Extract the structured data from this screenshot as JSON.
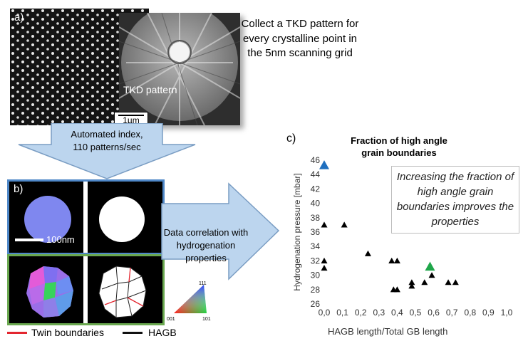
{
  "panel_a": {
    "label": "a)",
    "scale_bar": "1µm",
    "pattern_label": "TKD pattern",
    "collect_text": "Collect a TKD pattern for every crystalline point in the 5nm scanning grid"
  },
  "arrow_down": {
    "line1": "Automated index,",
    "line2": "110 patterns/sec"
  },
  "panel_b": {
    "label": "b)",
    "scale_bar": "100nm"
  },
  "arrow_right": {
    "line1": "Data correlation with",
    "line2": "hydrogenation",
    "line3": "properties"
  },
  "ipf_key": {
    "top": "111",
    "left": "001",
    "right": "101"
  },
  "legend": {
    "twin": "Twin boundaries",
    "hagb": "HAGB",
    "twin_color": "#e3262f",
    "hagb_color": "#111111"
  },
  "panel_c": {
    "label": "c)",
    "annotation": "Increasing the fraction of high angle grain boundaries improves the properties"
  },
  "chart_data": {
    "type": "scatter",
    "title": "Fraction of high angle grain boundaries",
    "xlabel": "HAGB length/Total GB length",
    "ylabel": "Hydrogenation pressure [mbar]",
    "xlim": [
      0,
      1.0
    ],
    "ylim": [
      26,
      46
    ],
    "x_ticks": [
      "0,0",
      "0,1",
      "0,2",
      "0,3",
      "0,4",
      "0,5",
      "0,6",
      "0,7",
      "0,8",
      "0,9",
      "1,0"
    ],
    "y_ticks": [
      "26",
      "28",
      "30",
      "32",
      "34",
      "36",
      "38",
      "40",
      "42",
      "44",
      "46"
    ],
    "grid": false,
    "points": [
      {
        "x": 0.0,
        "y": 45.3,
        "color": "#1f6fbf",
        "highlight": true
      },
      {
        "x": 0.0,
        "y": 37.0
      },
      {
        "x": 0.0,
        "y": 32.0
      },
      {
        "x": 0.0,
        "y": 31.0
      },
      {
        "x": 0.11,
        "y": 37.0
      },
      {
        "x": 0.24,
        "y": 33.0
      },
      {
        "x": 0.37,
        "y": 32.0
      },
      {
        "x": 0.4,
        "y": 32.0
      },
      {
        "x": 0.38,
        "y": 28.0
      },
      {
        "x": 0.4,
        "y": 28.0
      },
      {
        "x": 0.48,
        "y": 29.0
      },
      {
        "x": 0.48,
        "y": 28.5
      },
      {
        "x": 0.55,
        "y": 29.0
      },
      {
        "x": 0.58,
        "y": 31.2,
        "color": "#1fa64a",
        "highlight": true
      },
      {
        "x": 0.59,
        "y": 30.0
      },
      {
        "x": 0.68,
        "y": 29.0
      },
      {
        "x": 0.72,
        "y": 29.0
      }
    ]
  }
}
